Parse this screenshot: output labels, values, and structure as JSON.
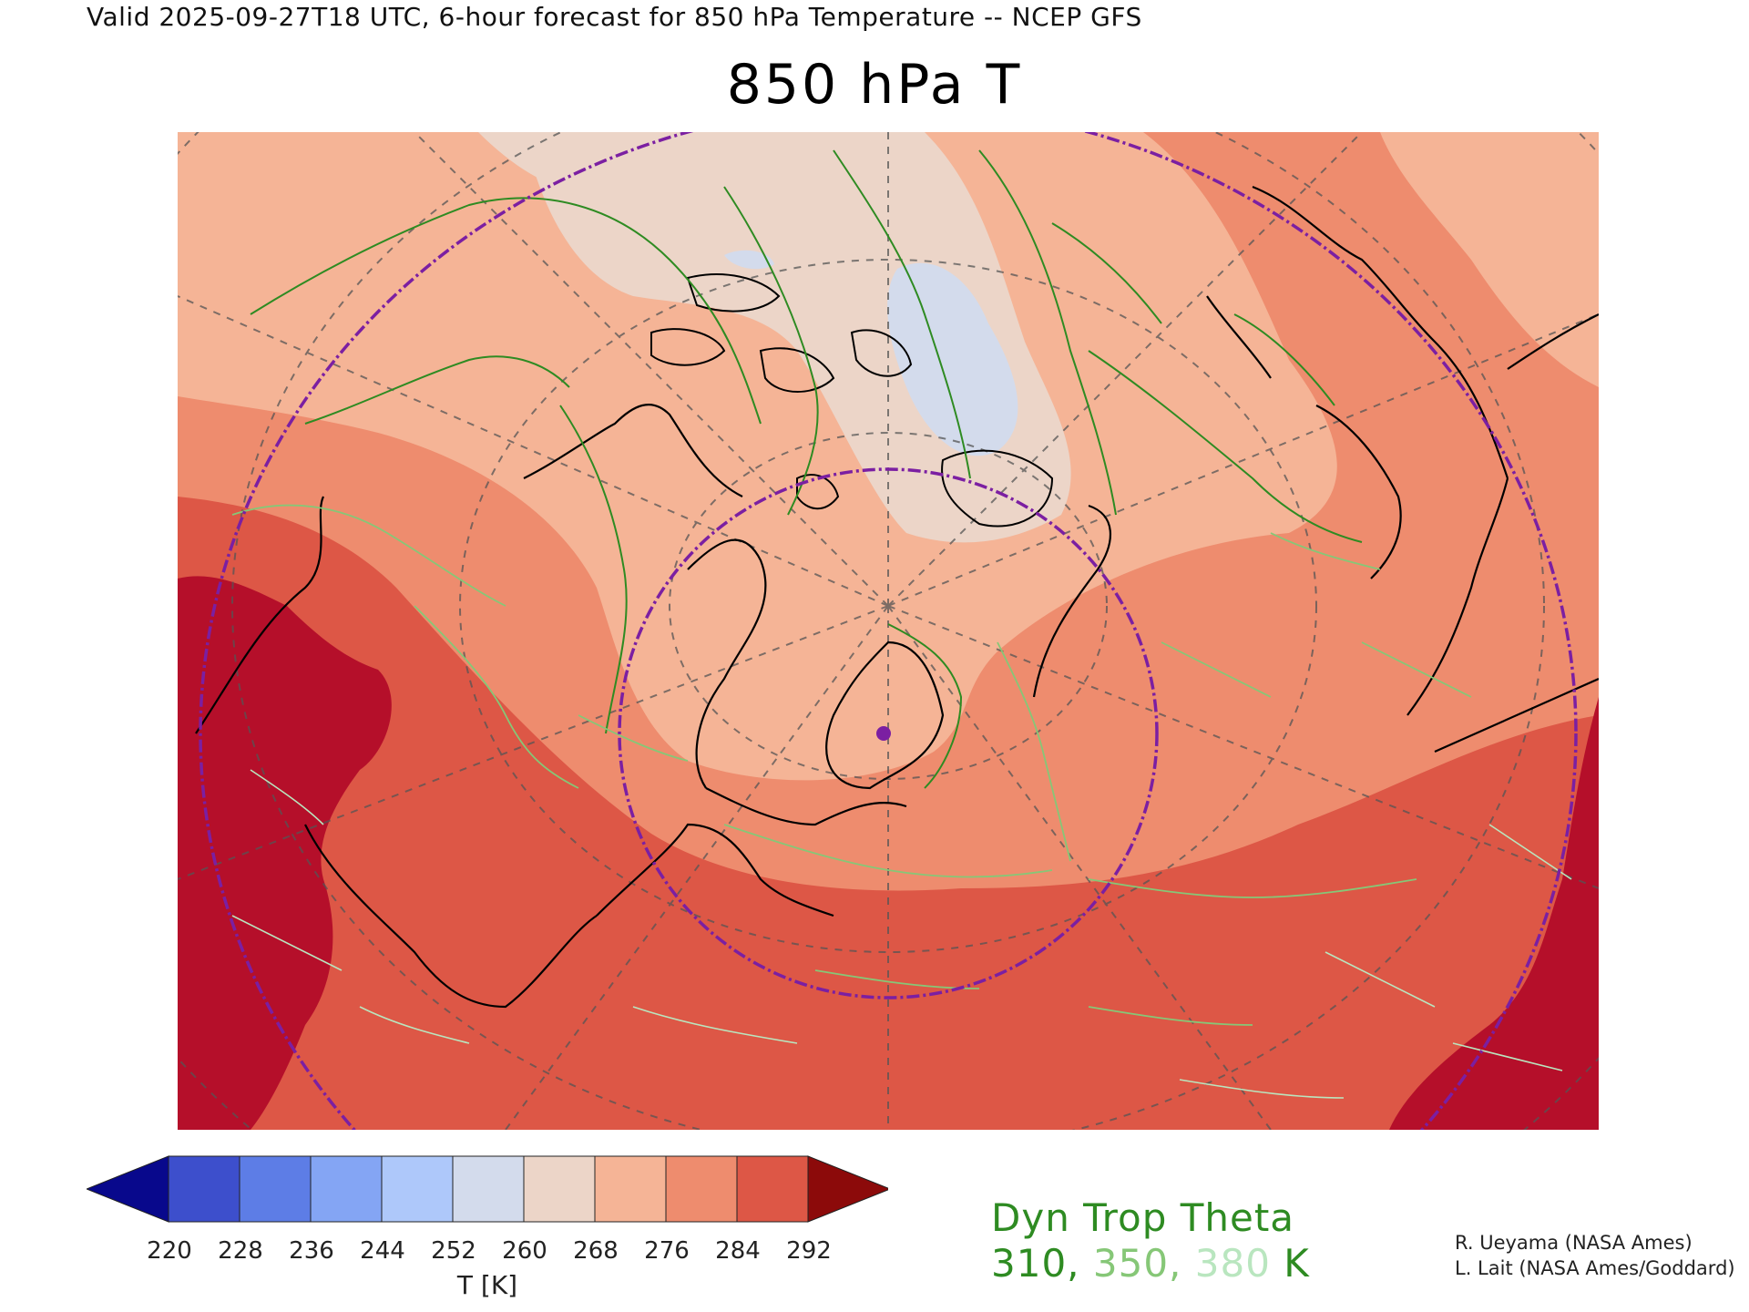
{
  "header": {
    "valid_line": "Valid 2025-09-27T18 UTC, 6-hour forecast for 850 hPa Temperature -- NCEP GFS",
    "title": "850 hPa T"
  },
  "colors": {
    "field_levels": [
      {
        "label": "<268",
        "color": "#ecd5c8"
      },
      {
        "label": "268-276",
        "color": "#f5b496"
      },
      {
        "label": "276-284",
        "color": "#ee8c6e"
      },
      {
        "label": "284-292",
        "color": "#dd5746"
      },
      {
        "label": ">292",
        "color": "#b50f2a"
      },
      {
        "label": "<252",
        "color": "#d3dbec"
      }
    ],
    "dyn_trop_310": "#2e8b22",
    "dyn_trop_350": "#86c777",
    "dyn_trop_380": "#b9e6bf",
    "range_ring": "#7b1fa2",
    "coastline": "#000000",
    "graticule": "#555555"
  },
  "map": {
    "marker_icon": "location-dot-icon",
    "layers": [
      "temperature-fill",
      "graticule",
      "coastlines",
      "dyn-trop-theta-contours",
      "range-rings"
    ]
  },
  "colorbar": {
    "colors": [
      "#08088c",
      "#3d4fcc",
      "#5d7de6",
      "#84a5f4",
      "#aec8fa",
      "#d3dbec",
      "#ecd5c8",
      "#f5b496",
      "#ee8c6e",
      "#dd5746",
      "#8c0a0a"
    ],
    "ticks": [
      "220",
      "228",
      "236",
      "244",
      "252",
      "260",
      "268",
      "276",
      "284",
      "292"
    ],
    "unit": "T [K]"
  },
  "legend": {
    "title": "Dyn Trop Theta",
    "v1": "310",
    "sep1": ", ",
    "v2": "350",
    "sep2": ", ",
    "v3": "380",
    "unit": " K"
  },
  "credits": {
    "line1": "R. Ueyama (NASA Ames)",
    "line2": "L. Lait (NASA Ames/Goddard)"
  }
}
